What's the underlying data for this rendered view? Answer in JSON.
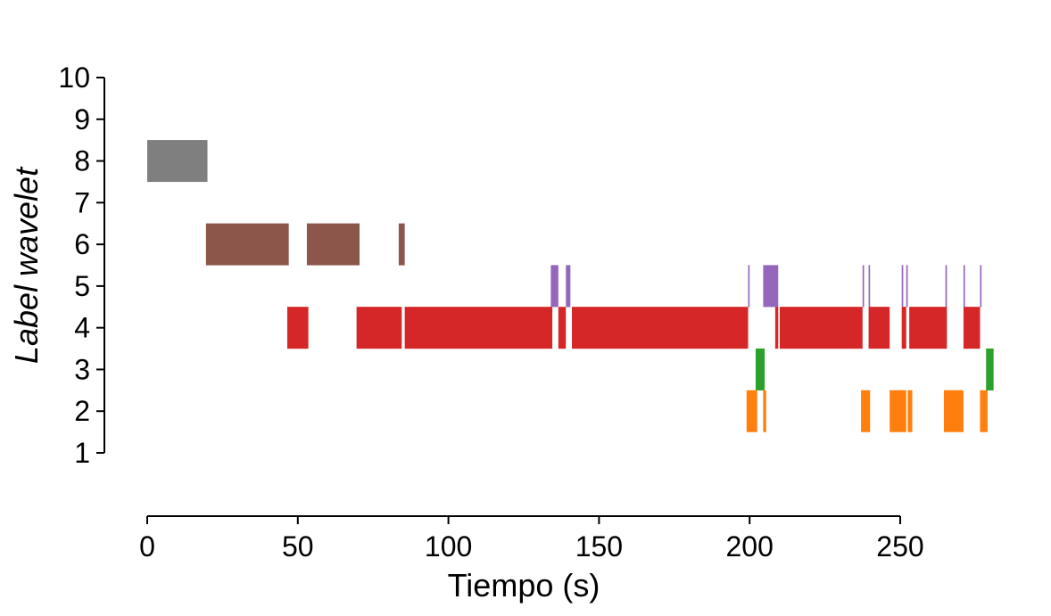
{
  "chart_data": {
    "type": "broken_barh",
    "title": "",
    "xlabel": "Tiempo (s)",
    "ylabel": "Label wavelet",
    "xlim": [
      0,
      250
    ],
    "ylim": [
      1,
      10
    ],
    "x_ticks": [
      0,
      50,
      100,
      150,
      200,
      250
    ],
    "y_ticks": [
      1,
      2,
      3,
      4,
      5,
      6,
      7,
      8,
      9,
      10
    ],
    "grid": false,
    "series": [
      {
        "label": 8,
        "color": "#7f7f7f",
        "segments": [
          [
            0,
            20
          ]
        ]
      },
      {
        "label": 6,
        "color": "#8c564b",
        "segments": [
          [
            19.5,
            47
          ],
          [
            53,
            70.5
          ],
          [
            83.5,
            85.5
          ]
        ]
      },
      {
        "label": 5,
        "color": "#9467bd",
        "segments": [
          [
            134,
            136.5
          ],
          [
            139,
            140.5
          ],
          [
            199.5,
            200
          ],
          [
            204.5,
            209.5
          ],
          [
            237.5,
            238
          ],
          [
            239.5,
            240
          ],
          [
            250.5,
            251
          ],
          [
            252,
            252.5
          ],
          [
            265,
            265.5
          ],
          [
            271,
            271.5
          ],
          [
            276.5,
            277
          ]
        ]
      },
      {
        "label": 4,
        "color": "#d62728",
        "segments": [
          [
            46.5,
            53.5
          ],
          [
            69.5,
            84.5
          ],
          [
            85.5,
            134.5
          ],
          [
            136.5,
            139
          ],
          [
            141,
            199.5
          ],
          [
            208.5,
            209.5
          ],
          [
            210,
            237.5
          ],
          [
            239.5,
            246.5
          ],
          [
            250.5,
            252
          ],
          [
            253,
            265.5
          ],
          [
            271,
            276.5
          ]
        ]
      },
      {
        "label": 3,
        "color": "#2ca02c",
        "segments": [
          [
            202,
            205
          ],
          [
            278.5,
            281
          ]
        ]
      },
      {
        "label": 2,
        "color": "#ff7f0e",
        "segments": [
          [
            199,
            202.5
          ],
          [
            204.5,
            205.5
          ],
          [
            237,
            240
          ],
          [
            246.5,
            252
          ],
          [
            252.5,
            254
          ],
          [
            264.5,
            271
          ],
          [
            276.5,
            279
          ]
        ]
      }
    ]
  }
}
